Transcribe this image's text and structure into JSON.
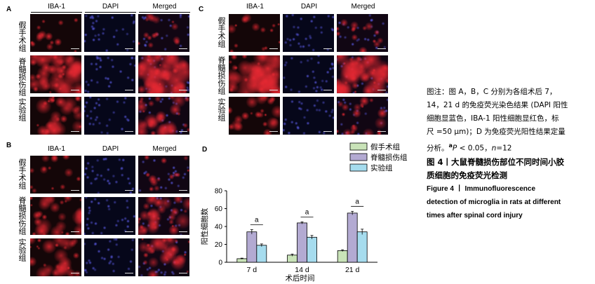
{
  "panels": [
    {
      "id": "A",
      "label": "A",
      "columns": [
        "IBA-1",
        "DAPI",
        "Merged"
      ],
      "rows": [
        "假手术组",
        "脊髓损伤组",
        "实验组"
      ]
    },
    {
      "id": "B",
      "label": "B",
      "columns": [
        "IBA-1",
        "DAPI",
        "Merged"
      ],
      "rows": [
        "假手术组",
        "脊髓损伤组",
        "实验组"
      ]
    },
    {
      "id": "C",
      "label": "C",
      "columns": [
        "IBA-1",
        "DAPI",
        "Merged"
      ],
      "rows": [
        "假手术组",
        "脊髓损伤组",
        "实验组"
      ]
    }
  ],
  "chart_panel_label": "D",
  "chart_data": {
    "type": "bar",
    "categories": [
      "7 d",
      "14 d",
      "21 d"
    ],
    "series": [
      {
        "name": "假手术组",
        "values": [
          4,
          8,
          13
        ],
        "errors": [
          0.6,
          1.2,
          1.0
        ],
        "color": "#c9e3b8"
      },
      {
        "name": "脊髓损伤组",
        "values": [
          34,
          44,
          55
        ],
        "errors": [
          2.5,
          1.2,
          2.0
        ],
        "color": "#b3aad2"
      },
      {
        "name": "实验组",
        "values": [
          19,
          28,
          34
        ],
        "errors": [
          1.5,
          2.0,
          3.0
        ],
        "color": "#a6dcee"
      }
    ],
    "significance": [
      "a",
      "a",
      "a"
    ],
    "xlabel": "术后时间",
    "ylabel": "阳性细胞数",
    "ylim": [
      0,
      80
    ],
    "yticks": [
      0,
      20,
      40,
      60,
      80
    ],
    "legend_position": "top-right"
  },
  "caption": {
    "note_lines": [
      "图注：图 A，B，C 分别为各组术后 7，",
      "14，21 d 的免疫荧光染色结果 (DAPI 阳性",
      "细胞显蓝色，IBA-1 阳性细胞显红色，标",
      "尺 =50 μm)；D 为免疫荧光阳性结果定量"
    ],
    "note_last": {
      "prefix": "分析。",
      "sup": "a",
      "p": "P",
      "p_rest": " < 0.05，",
      "n": "n",
      "n_rest": "=12"
    },
    "title_cn_lines": [
      "图 4丨大鼠脊髓损伤部位不同时间小胶",
      "质细胞的免疫荧光检测"
    ],
    "title_en_lines": [
      "Figure 4 丨 Immunofluorescence",
      "detection of microglia in rats at different",
      "times after spinal cord injury"
    ]
  }
}
